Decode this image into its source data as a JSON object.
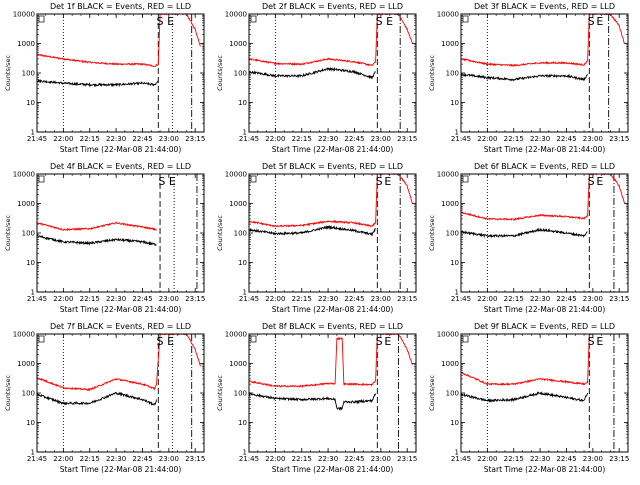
{
  "colors": {
    "events": "#000000",
    "lld": "#ff0000",
    "axes": "#000000",
    "background": "#ffffff"
  },
  "chart_data": [
    {
      "type": "line",
      "title": "Det 1f BLACK = Events, RED = LLD",
      "xlabel": "Start Time (22-Mar-08 21:44:00)",
      "ylabel": "Counts/sec",
      "yscale": "log",
      "ylim": [
        1,
        10000
      ],
      "y_ticks": [
        1,
        10,
        100,
        1000,
        10000
      ],
      "y_tick_labels": [
        "1",
        "10",
        "100",
        "1000",
        "10000"
      ],
      "x_ticks": [
        "21:45",
        "22:00",
        "22:15",
        "22:30",
        "22:45",
        "23:00",
        "23:15"
      ],
      "markers": [
        {
          "label": "S",
          "x": "22:55"
        },
        {
          "label": "E",
          "x": "23:01"
        }
      ],
      "vertical_lines": [
        {
          "style": "dotted",
          "x": "22:00"
        },
        {
          "style": "dashed",
          "x": "22:54"
        },
        {
          "style": "dotted",
          "x": "23:02"
        },
        {
          "style": "dashdot",
          "x": "23:13"
        }
      ],
      "series": [
        {
          "name": "Events",
          "x": [
            "21:45",
            "22:00",
            "22:15",
            "22:30",
            "22:45",
            "22:52",
            "22:54"
          ],
          "values": [
            55,
            45,
            40,
            40,
            45,
            40,
            55
          ]
        },
        {
          "name": "LLD",
          "x": [
            "21:45",
            "22:00",
            "22:15",
            "22:30",
            "22:45",
            "22:52",
            "22:54",
            "22:55",
            "23:00",
            "23:05",
            "23:10",
            "23:15",
            "23:18"
          ],
          "values": [
            420,
            300,
            230,
            200,
            200,
            170,
            200,
            10000,
            10000,
            10000,
            10000,
            3000,
            800
          ]
        }
      ]
    },
    {
      "type": "line",
      "title": "Det 2f BLACK = Events, RED = LLD",
      "xlabel": "Start Time (22-Mar-08 21:44:00)",
      "ylabel": "Counts/sec",
      "yscale": "log",
      "ylim": [
        1,
        10000
      ],
      "y_ticks": [
        1,
        10,
        100,
        1000,
        10000
      ],
      "y_tick_labels": [
        "1",
        "10",
        "100",
        "1000",
        "10000"
      ],
      "x_ticks": [
        "21:45",
        "22:00",
        "22:15",
        "22:30",
        "22:45",
        "23:00",
        "23:15"
      ],
      "markers": [
        {
          "label": "S",
          "x": "22:59"
        },
        {
          "label": "E",
          "x": "23:05"
        }
      ],
      "vertical_lines": [
        {
          "style": "dotted",
          "x": "22:00"
        },
        {
          "style": "dashed",
          "x": "22:58"
        },
        {
          "style": "dashdot",
          "x": "23:11"
        }
      ],
      "series": [
        {
          "name": "Events",
          "x": [
            "21:45",
            "22:00",
            "22:15",
            "22:30",
            "22:45",
            "22:55",
            "22:57"
          ],
          "values": [
            110,
            80,
            80,
            140,
            110,
            70,
            110
          ]
        },
        {
          "name": "LLD",
          "x": [
            "21:45",
            "22:00",
            "22:15",
            "22:30",
            "22:45",
            "22:55",
            "22:57",
            "22:58",
            "23:00",
            "23:05",
            "23:10",
            "23:15",
            "23:18"
          ],
          "values": [
            300,
            210,
            200,
            300,
            240,
            180,
            240,
            10000,
            10000,
            10000,
            10000,
            3000,
            1000
          ]
        }
      ]
    },
    {
      "type": "line",
      "title": "Det 3f BLACK = Events, RED = LLD",
      "xlabel": "Start Time (22-Mar-08 21:44:00)",
      "ylabel": "Counts/sec",
      "yscale": "log",
      "ylim": [
        1,
        10000
      ],
      "y_ticks": [
        1,
        10,
        100,
        1000,
        10000
      ],
      "y_tick_labels": [
        "1",
        "10",
        "100",
        "1000",
        "10000"
      ],
      "x_ticks": [
        "21:45",
        "22:00",
        "22:15",
        "22:30",
        "22:45",
        "23:00",
        "23:15"
      ],
      "markers": [
        {
          "label": "S",
          "x": "22:59"
        },
        {
          "label": "E",
          "x": "23:04"
        }
      ],
      "vertical_lines": [
        {
          "style": "dotted",
          "x": "22:00"
        },
        {
          "style": "dashed",
          "x": "22:58"
        },
        {
          "style": "dashdot",
          "x": "23:09"
        }
      ],
      "series": [
        {
          "name": "Events",
          "x": [
            "21:45",
            "22:00",
            "22:15",
            "22:30",
            "22:45",
            "22:55",
            "22:57"
          ],
          "values": [
            90,
            70,
            60,
            80,
            80,
            60,
            90
          ]
        },
        {
          "name": "LLD",
          "x": [
            "21:45",
            "22:00",
            "22:15",
            "22:30",
            "22:45",
            "22:55",
            "22:57",
            "22:58",
            "23:00",
            "23:05",
            "23:10",
            "23:15",
            "23:18"
          ],
          "values": [
            300,
            200,
            180,
            220,
            220,
            190,
            260,
            10000,
            10000,
            10000,
            10000,
            4000,
            1000
          ]
        }
      ]
    },
    {
      "type": "line",
      "title": "Det 4f BLACK = Events, RED = LLD",
      "xlabel": "Start Time (22-Mar-08 21:44:00)",
      "ylabel": "Counts/sec",
      "yscale": "log",
      "ylim": [
        1,
        10000
      ],
      "y_ticks": [
        1,
        10,
        100,
        1000,
        10000
      ],
      "y_tick_labels": [
        "1",
        "10",
        "100",
        "1000",
        "10000"
      ],
      "x_ticks": [
        "21:45",
        "22:00",
        "22:15",
        "22:30",
        "22:45",
        "23:00",
        "23:15"
      ],
      "markers": [
        {
          "label": "S",
          "x": "22:56"
        },
        {
          "label": "E",
          "x": "23:02"
        }
      ],
      "vertical_lines": [
        {
          "style": "dashed",
          "x": "22:55"
        },
        {
          "style": "dotted",
          "x": "23:03"
        },
        {
          "style": "dashdot",
          "x": "23:16"
        }
      ],
      "series": [
        {
          "name": "Events",
          "x": [
            "21:45",
            "22:00",
            "22:15",
            "22:30",
            "22:45",
            "22:53"
          ],
          "values": [
            80,
            50,
            45,
            60,
            50,
            40
          ]
        },
        {
          "name": "LLD",
          "x": [
            "21:45",
            "22:00",
            "22:15",
            "22:30",
            "22:45",
            "22:53"
          ],
          "values": [
            220,
            130,
            140,
            220,
            160,
            130
          ]
        }
      ]
    },
    {
      "type": "line",
      "title": "Det 5f BLACK = Events, RED = LLD",
      "xlabel": "Start Time (22-Mar-08 21:44:00)",
      "ylabel": "Counts/sec",
      "yscale": "log",
      "ylim": [
        1,
        10000
      ],
      "y_ticks": [
        1,
        10,
        100,
        1000,
        10000
      ],
      "y_tick_labels": [
        "1",
        "10",
        "100",
        "1000",
        "10000"
      ],
      "x_ticks": [
        "21:45",
        "22:00",
        "22:15",
        "22:30",
        "22:45",
        "23:00",
        "23:15"
      ],
      "markers": [
        {
          "label": "S",
          "x": "22:59"
        },
        {
          "label": "E",
          "x": "23:04"
        }
      ],
      "vertical_lines": [
        {
          "style": "dotted",
          "x": "22:00"
        },
        {
          "style": "dashed",
          "x": "22:58"
        },
        {
          "style": "dashdot",
          "x": "23:11"
        }
      ],
      "series": [
        {
          "name": "Events",
          "x": [
            "21:45",
            "22:00",
            "22:15",
            "22:30",
            "22:45",
            "22:55",
            "22:57"
          ],
          "values": [
            130,
            95,
            100,
            160,
            120,
            90,
            140
          ]
        },
        {
          "name": "LLD",
          "x": [
            "21:45",
            "22:00",
            "22:15",
            "22:30",
            "22:45",
            "22:55",
            "22:57",
            "22:58",
            "23:00",
            "23:05",
            "23:10",
            "23:15",
            "23:18"
          ],
          "values": [
            250,
            170,
            180,
            250,
            220,
            170,
            220,
            10000,
            10000,
            10000,
            10000,
            4000,
            1000
          ]
        }
      ]
    },
    {
      "type": "line",
      "title": "Det 6f BLACK = Events, RED = LLD",
      "xlabel": "Start Time (22-Mar-08 21:44:00)",
      "ylabel": "Counts/sec",
      "yscale": "log",
      "ylim": [
        1,
        10000
      ],
      "y_ticks": [
        1,
        10,
        100,
        1000,
        10000
      ],
      "y_tick_labels": [
        "1",
        "10",
        "100",
        "1000",
        "10000"
      ],
      "x_ticks": [
        "21:45",
        "22:00",
        "22:15",
        "22:30",
        "22:45",
        "23:00",
        "23:15"
      ],
      "markers": [
        {
          "label": "S",
          "x": "22:59"
        },
        {
          "label": "E",
          "x": "23:04"
        }
      ],
      "vertical_lines": [
        {
          "style": "dotted",
          "x": "22:00"
        },
        {
          "style": "dashed",
          "x": "22:58"
        },
        {
          "style": "dashdot",
          "x": "23:12"
        }
      ],
      "series": [
        {
          "name": "Events",
          "x": [
            "21:45",
            "22:00",
            "22:15",
            "22:30",
            "22:45",
            "22:55",
            "22:57"
          ],
          "values": [
            110,
            80,
            80,
            130,
            100,
            80,
            110
          ]
        },
        {
          "name": "LLD",
          "x": [
            "21:45",
            "22:00",
            "22:15",
            "22:30",
            "22:45",
            "22:55",
            "22:57",
            "22:58",
            "23:00",
            "23:05",
            "23:10",
            "23:15",
            "23:18"
          ],
          "values": [
            500,
            300,
            290,
            400,
            360,
            310,
            380,
            10000,
            10000,
            10000,
            10000,
            4000,
            1000
          ]
        }
      ]
    },
    {
      "type": "line",
      "title": "Det 7f BLACK = Events, RED = LLD",
      "xlabel": "Start Time (22-Mar-08 21:44:00)",
      "ylabel": "Counts/sec",
      "yscale": "log",
      "ylim": [
        1,
        10000
      ],
      "y_ticks": [
        1,
        10,
        100,
        1000,
        10000
      ],
      "y_tick_labels": [
        "1",
        "10",
        "100",
        "1000",
        "10000"
      ],
      "x_ticks": [
        "21:45",
        "22:00",
        "22:15",
        "22:30",
        "22:45",
        "23:00",
        "23:15"
      ],
      "markers": [
        {
          "label": "S",
          "x": "22:55"
        },
        {
          "label": "E",
          "x": "23:01"
        }
      ],
      "vertical_lines": [
        {
          "style": "dotted",
          "x": "22:00"
        },
        {
          "style": "dashed",
          "x": "22:54"
        },
        {
          "style": "dotted",
          "x": "23:02"
        },
        {
          "style": "dashdot",
          "x": "23:13"
        }
      ],
      "series": [
        {
          "name": "Events",
          "x": [
            "21:45",
            "22:00",
            "22:15",
            "22:30",
            "22:45",
            "22:52",
            "22:53"
          ],
          "values": [
            90,
            45,
            45,
            100,
            60,
            40,
            60
          ]
        },
        {
          "name": "LLD",
          "x": [
            "21:45",
            "22:00",
            "22:15",
            "22:30",
            "22:45",
            "22:52",
            "22:53",
            "22:55",
            "23:00",
            "23:05",
            "23:10",
            "23:15",
            "23:18"
          ],
          "values": [
            330,
            150,
            130,
            300,
            200,
            140,
            200,
            10000,
            10000,
            10000,
            10000,
            3000,
            800
          ]
        }
      ]
    },
    {
      "type": "line",
      "title": "Det 8f BLACK = Events, RED = LLD",
      "xlabel": "Start Time (22-Mar-08 21:44:00)",
      "ylabel": "Counts/sec",
      "yscale": "log",
      "ylim": [
        1,
        10000
      ],
      "y_ticks": [
        1,
        10,
        100,
        1000,
        10000
      ],
      "y_tick_labels": [
        "1",
        "10",
        "100",
        "1000",
        "10000"
      ],
      "x_ticks": [
        "21:45",
        "22:00",
        "22:15",
        "22:30",
        "22:45",
        "23:00",
        "23:15"
      ],
      "markers": [
        {
          "label": "S",
          "x": "22:59"
        },
        {
          "label": "E",
          "x": "23:04"
        }
      ],
      "vertical_lines": [
        {
          "style": "dotted",
          "x": "22:00"
        },
        {
          "style": "dashed",
          "x": "22:58"
        },
        {
          "style": "dashdot",
          "x": "23:10"
        }
      ],
      "series": [
        {
          "name": "Events",
          "x": [
            "21:45",
            "22:00",
            "22:15",
            "22:30",
            "22:34",
            "22:35",
            "22:38",
            "22:39",
            "22:45",
            "22:55",
            "22:57"
          ],
          "values": [
            95,
            65,
            60,
            65,
            60,
            30,
            30,
            50,
            50,
            55,
            95
          ]
        },
        {
          "name": "LLD",
          "x": [
            "21:45",
            "22:00",
            "22:15",
            "22:30",
            "22:34",
            "22:35",
            "22:38",
            "22:39",
            "22:45",
            "22:55",
            "22:57",
            "22:58",
            "23:00",
            "23:05",
            "23:10",
            "23:15",
            "23:18"
          ],
          "values": [
            250,
            170,
            170,
            210,
            210,
            7000,
            7000,
            200,
            200,
            190,
            260,
            10000,
            10000,
            10000,
            10000,
            3000,
            900
          ]
        }
      ]
    },
    {
      "type": "line",
      "title": "Det 9f BLACK = Events, RED = LLD",
      "xlabel": "Start Time (22-Mar-08 21:44:00)",
      "ylabel": "Counts/sec",
      "yscale": "log",
      "ylim": [
        1,
        10000
      ],
      "y_ticks": [
        1,
        10,
        100,
        1000,
        10000
      ],
      "y_tick_labels": [
        "1",
        "10",
        "100",
        "1000",
        "10000"
      ],
      "x_ticks": [
        "21:45",
        "22:00",
        "22:15",
        "22:30",
        "22:45",
        "23:00",
        "23:15"
      ],
      "markers": [
        {
          "label": "S",
          "x": "22:59"
        },
        {
          "label": "E",
          "x": "23:04"
        }
      ],
      "vertical_lines": [
        {
          "style": "dotted",
          "x": "22:00"
        },
        {
          "style": "dashed",
          "x": "22:58"
        },
        {
          "style": "dashdot",
          "x": "23:12"
        }
      ],
      "series": [
        {
          "name": "Events",
          "x": [
            "21:45",
            "22:00",
            "22:15",
            "22:30",
            "22:45",
            "22:55",
            "22:57"
          ],
          "values": [
            90,
            55,
            60,
            100,
            70,
            55,
            100
          ]
        },
        {
          "name": "LLD",
          "x": [
            "21:45",
            "22:00",
            "22:15",
            "22:30",
            "22:45",
            "22:55",
            "22:57",
            "22:58",
            "23:00"
          ],
          "values": [
            500,
            200,
            200,
            300,
            240,
            200,
            230,
            10000,
            10000
          ]
        }
      ]
    }
  ]
}
